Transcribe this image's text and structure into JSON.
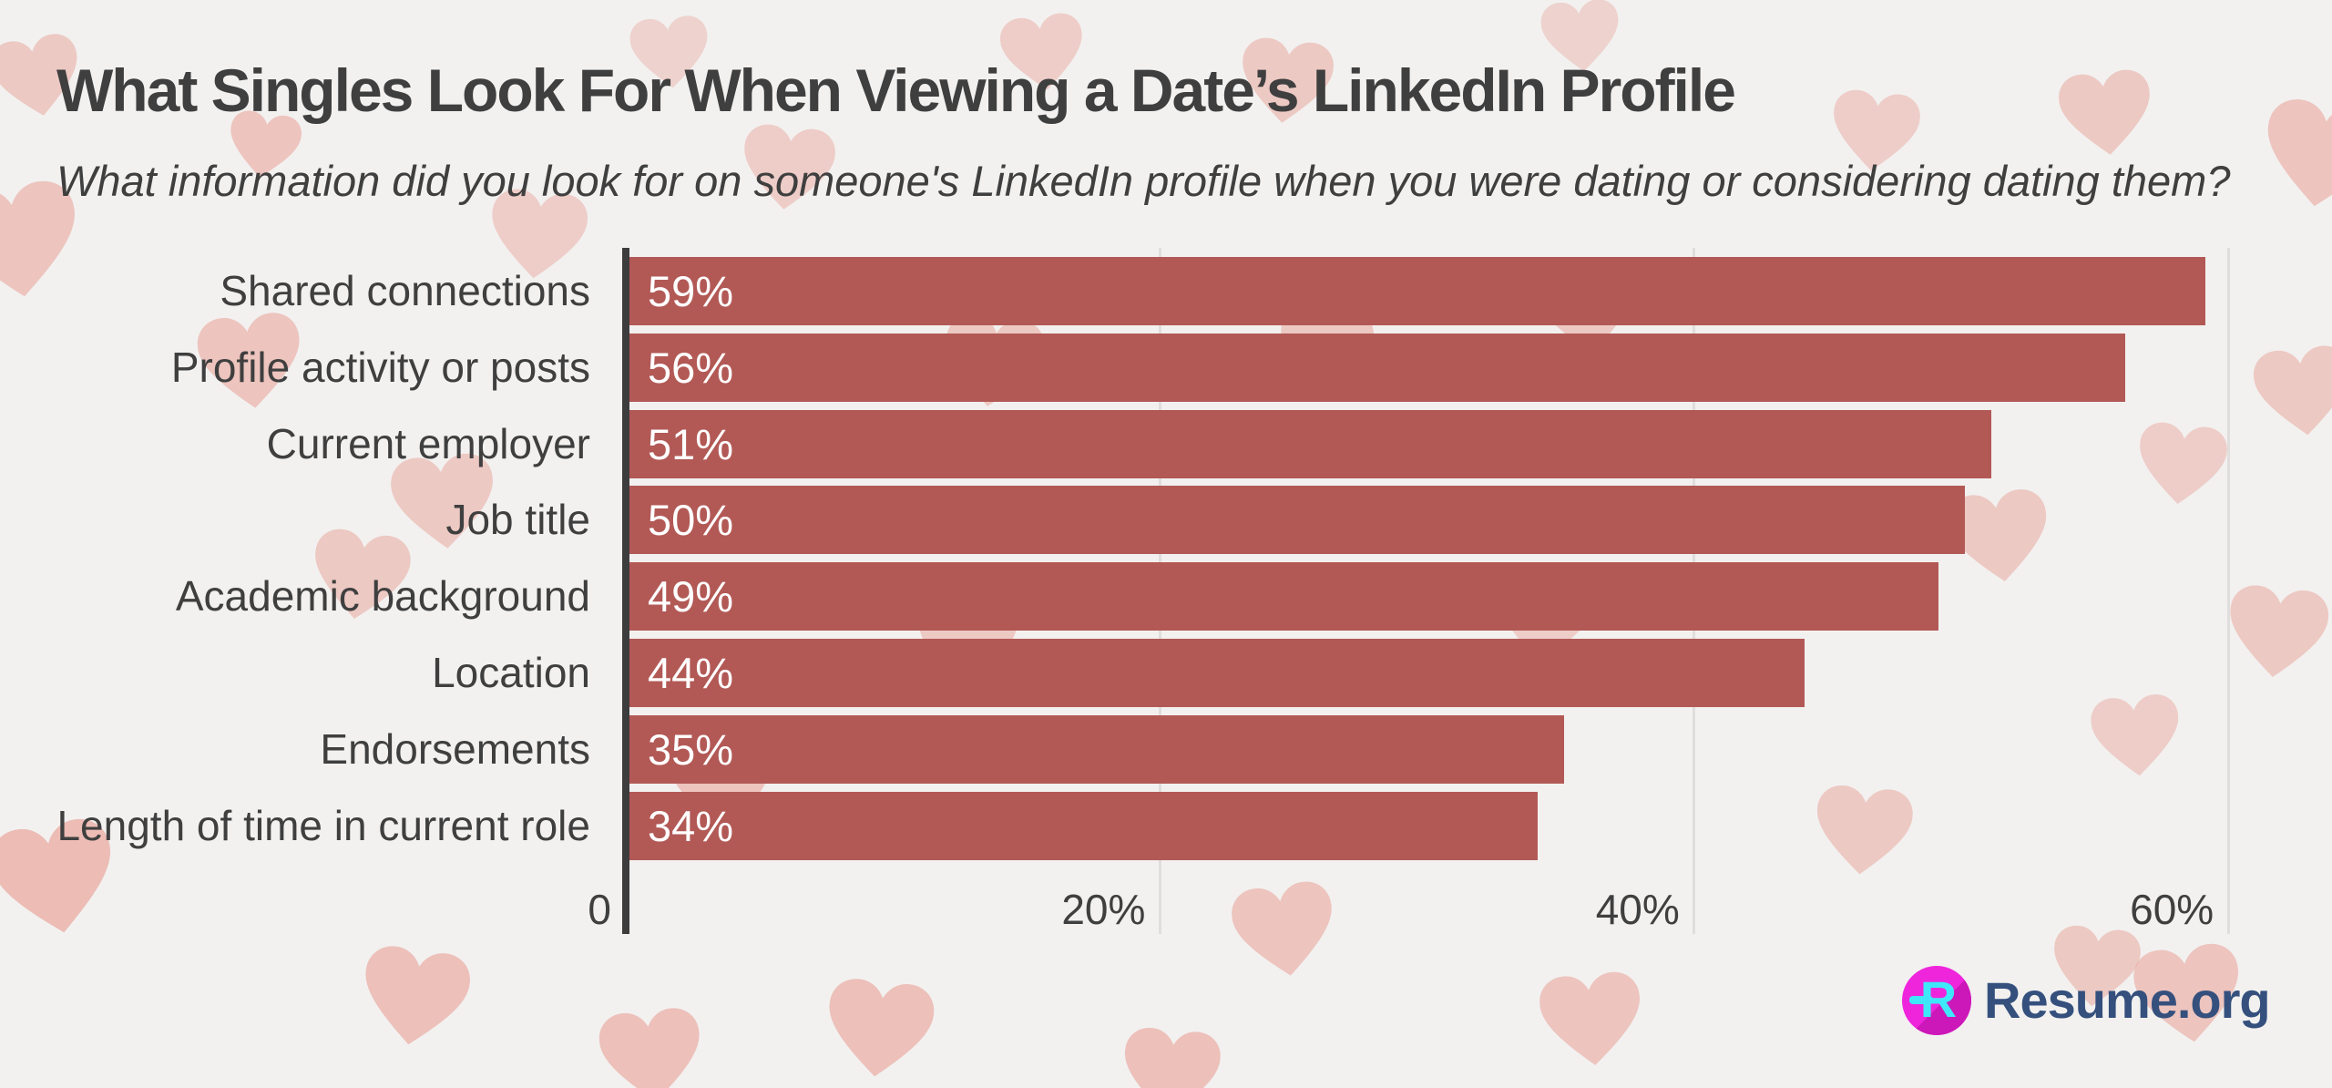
{
  "chart_data": {
    "type": "bar",
    "orientation": "horizontal",
    "title": "What Singles Look For When Viewing a Date’s LinkedIn Profile",
    "subtitle": "What information did you look for on someone's LinkedIn profile when you were dating or considering dating them?",
    "categories": [
      "Shared connections",
      "Profile activity or posts",
      "Current employer",
      "Job title",
      "Academic background",
      "Location",
      "Endorsements",
      "Length of time in current role"
    ],
    "values": [
      59,
      56,
      51,
      50,
      49,
      44,
      35,
      34
    ],
    "value_labels": [
      "59%",
      "56%",
      "51%",
      "50%",
      "49%",
      "44%",
      "35%",
      "34%"
    ],
    "xlabel": "",
    "ylabel": "",
    "xlim": [
      0,
      61
    ],
    "x_ticks": [
      {
        "value": 0,
        "label": "0"
      },
      {
        "value": 20,
        "label": "20%"
      },
      {
        "value": 40,
        "label": "40%"
      },
      {
        "value": 60,
        "label": "60%"
      }
    ],
    "grid": true,
    "legend_position": "none",
    "bar_color": "#b25956",
    "value_label_color": "#ffffff",
    "label_color": "#3f3f3f"
  },
  "branding": {
    "logo_letter": "R",
    "logo_text": "Resume.org",
    "logo_circle_color": "#ef25dc",
    "logo_letter_color": "#3ee8f8",
    "logo_text_color": "#35507d"
  },
  "colors": {
    "background": "#f2f1f0",
    "heart": "#e9998e",
    "axis_line": "#3d3d3d",
    "gridline": "#e0dedc",
    "title_text": "#3f3f3f"
  }
}
